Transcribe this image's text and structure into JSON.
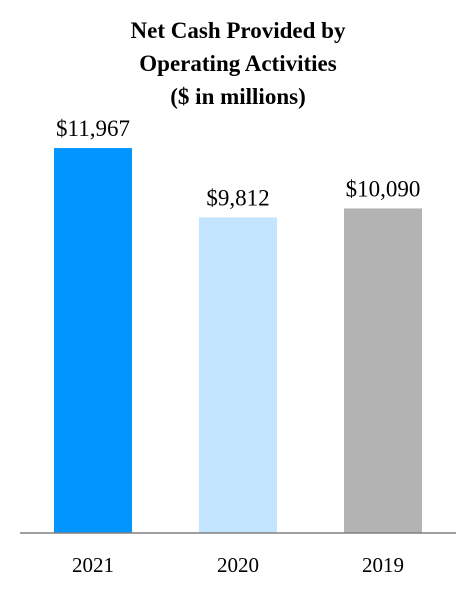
{
  "chart_data": {
    "type": "bar",
    "title_lines": [
      "Net Cash Provided by",
      "Operating Activities",
      "($ in millions)"
    ],
    "categories": [
      "2021",
      "2020",
      "2019"
    ],
    "values": [
      11967,
      9812,
      10090
    ],
    "value_labels": [
      "$11,967",
      "$9,812",
      "$10,090"
    ],
    "colors": [
      "#0095ff",
      "#c4e5ff",
      "#b3b3b3"
    ],
    "axis_color": "#808080",
    "ylim": [
      0,
      12000
    ],
    "xlabel": "",
    "ylabel": "",
    "grid": false,
    "legend": "none"
  }
}
